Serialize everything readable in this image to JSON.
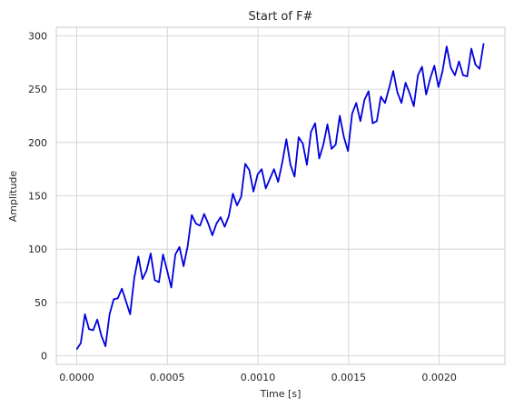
{
  "chart_data": {
    "type": "line",
    "title": "Start of F#",
    "xlabel": "Time [s]",
    "ylabel": "Amplitude",
    "xlim": [
      -0.0001125,
      0.0023625
    ],
    "ylim": [
      -8,
      308
    ],
    "grid": true,
    "x_ticks": [
      0,
      0.0005,
      0.001,
      0.0015,
      0.002
    ],
    "x_tick_labels": [
      "0.0000",
      "0.0005",
      "0.0010",
      "0.0015",
      "0.0020"
    ],
    "y_ticks": [
      0,
      50,
      100,
      150,
      200,
      250,
      300
    ],
    "y_tick_labels": [
      "0",
      "50",
      "100",
      "150",
      "200",
      "250",
      "300"
    ],
    "x_step": 2.268e-05,
    "series": [
      {
        "color": "#0000dd",
        "values": [
          6,
          12,
          39,
          25,
          24,
          34,
          19,
          9,
          39,
          53,
          54,
          63,
          51,
          39,
          73,
          93,
          72,
          80,
          96,
          71,
          69,
          95,
          80,
          64,
          95,
          102,
          84,
          103,
          132,
          124,
          122,
          133,
          124,
          113,
          124,
          130,
          121,
          131,
          152,
          141,
          149,
          180,
          174,
          154,
          170,
          175,
          157,
          166,
          175,
          163,
          181,
          203,
          179,
          168,
          205,
          199,
          179,
          210,
          218,
          185,
          198,
          217,
          194,
          198,
          225,
          205,
          192,
          227,
          237,
          220,
          240,
          248,
          218,
          220,
          243,
          237,
          251,
          267,
          247,
          237,
          256,
          246,
          234,
          263,
          271,
          245,
          260,
          272,
          252,
          267,
          290,
          270,
          263,
          276,
          263,
          262,
          288,
          273,
          269,
          293
        ]
      }
    ]
  }
}
